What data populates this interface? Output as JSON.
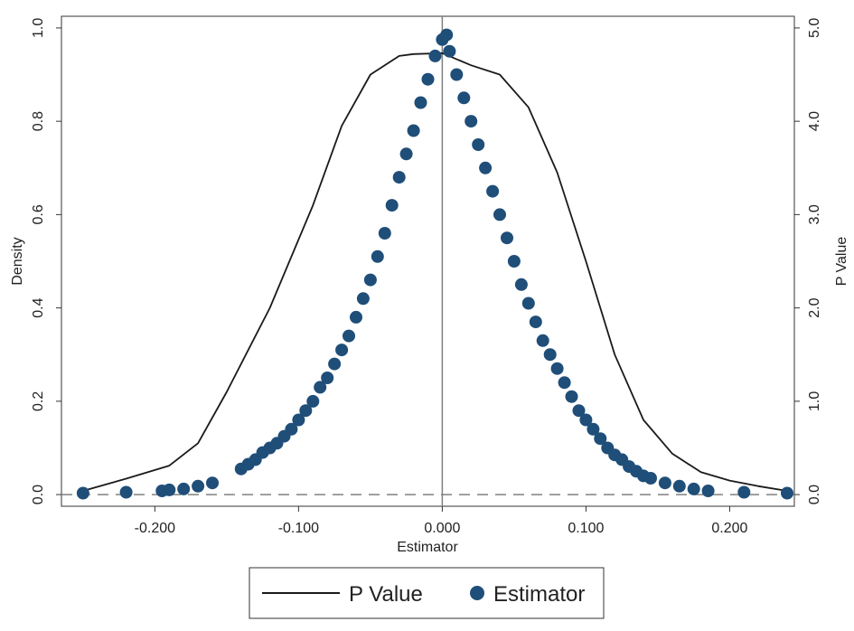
{
  "chart_data": {
    "type": "scatter",
    "title": "",
    "xlabel": "Estimator",
    "ylabel_left": "Density",
    "ylabel_right": "P Value",
    "xlim": [
      -0.265,
      0.245
    ],
    "ylim_left": [
      -0.025,
      1.025
    ],
    "ylim_right": [
      -0.125,
      5.125
    ],
    "x_ticks": [
      -0.2,
      -0.1,
      0.0,
      0.1,
      0.2
    ],
    "x_tick_labels": [
      "-0.200",
      "-0.100",
      "0.000",
      "0.100",
      "0.200"
    ],
    "y_left_ticks": [
      0.0,
      0.2,
      0.4,
      0.6,
      0.8,
      1.0
    ],
    "y_left_tick_labels": [
      "0.0",
      "0.2",
      "0.4",
      "0.6",
      "0.8",
      "1.0"
    ],
    "y_right_ticks": [
      0.0,
      1.0,
      2.0,
      3.0,
      4.0,
      5.0
    ],
    "y_right_tick_labels": [
      "0.0",
      "1.0",
      "2.0",
      "3.0",
      "4.0",
      "5.0"
    ],
    "reference_lines": {
      "vertical_x": 0.0,
      "horizontal_dashed_y": 0.0
    },
    "grid": false,
    "legend_position": "bottom",
    "colors": {
      "line": "#1a1a1a",
      "markers": "#1f4e79",
      "reference": "#808080"
    },
    "series": [
      {
        "name": "P Value",
        "kind": "line",
        "axis": "right",
        "x": [
          -0.25,
          -0.22,
          -0.19,
          -0.17,
          -0.15,
          -0.12,
          -0.09,
          -0.07,
          -0.05,
          -0.03,
          -0.02,
          0.0,
          0.02,
          0.04,
          0.06,
          0.08,
          0.1,
          0.12,
          0.14,
          0.16,
          0.18,
          0.2,
          0.22,
          0.24
        ],
        "y": [
          0.04,
          0.17,
          0.31,
          0.55,
          1.1,
          2.0,
          3.1,
          3.95,
          4.5,
          4.7,
          4.72,
          4.73,
          4.6,
          4.5,
          4.15,
          3.45,
          2.5,
          1.5,
          0.8,
          0.44,
          0.24,
          0.15,
          0.09,
          0.04
        ]
      },
      {
        "name": "Estimator",
        "kind": "scatter",
        "axis": "left",
        "x": [
          -0.25,
          -0.22,
          -0.195,
          -0.19,
          -0.18,
          -0.17,
          -0.16,
          -0.14,
          -0.135,
          -0.13,
          -0.125,
          -0.12,
          -0.115,
          -0.11,
          -0.105,
          -0.1,
          -0.095,
          -0.09,
          -0.085,
          -0.08,
          -0.075,
          -0.07,
          -0.065,
          -0.06,
          -0.055,
          -0.05,
          -0.045,
          -0.04,
          -0.035,
          -0.03,
          -0.025,
          -0.02,
          -0.015,
          -0.01,
          -0.005,
          0.0,
          0.003,
          0.005,
          0.01,
          0.015,
          0.02,
          0.025,
          0.03,
          0.035,
          0.04,
          0.045,
          0.05,
          0.055,
          0.06,
          0.065,
          0.07,
          0.075,
          0.08,
          0.085,
          0.09,
          0.095,
          0.1,
          0.105,
          0.11,
          0.115,
          0.12,
          0.125,
          0.13,
          0.135,
          0.14,
          0.145,
          0.155,
          0.165,
          0.175,
          0.185,
          0.21,
          0.24
        ],
        "y": [
          0.003,
          0.005,
          0.008,
          0.01,
          0.012,
          0.018,
          0.025,
          0.055,
          0.065,
          0.075,
          0.09,
          0.1,
          0.11,
          0.125,
          0.14,
          0.16,
          0.18,
          0.2,
          0.23,
          0.25,
          0.28,
          0.31,
          0.34,
          0.38,
          0.42,
          0.46,
          0.51,
          0.56,
          0.62,
          0.68,
          0.73,
          0.78,
          0.84,
          0.89,
          0.94,
          0.975,
          0.985,
          0.95,
          0.9,
          0.85,
          0.8,
          0.75,
          0.7,
          0.65,
          0.6,
          0.55,
          0.5,
          0.45,
          0.41,
          0.37,
          0.33,
          0.3,
          0.27,
          0.24,
          0.21,
          0.18,
          0.16,
          0.14,
          0.12,
          0.1,
          0.085,
          0.075,
          0.06,
          0.05,
          0.04,
          0.035,
          0.025,
          0.018,
          0.012,
          0.008,
          0.005,
          0.003
        ]
      }
    ]
  }
}
